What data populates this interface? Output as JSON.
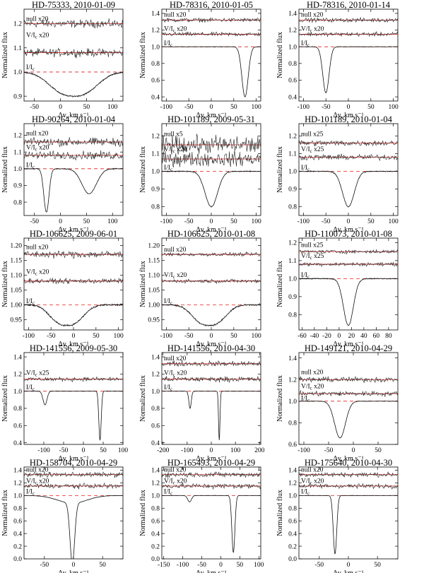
{
  "figure": {
    "xlabel": "Δv, km s⁻¹",
    "ylabel": "Normalized flux"
  },
  "chart_data": [
    {
      "type": "line",
      "title": "HD-75333, 2010-01-09",
      "xlim": [
        -70,
        120
      ],
      "ylim": [
        0.88,
        1.26
      ],
      "xticks": [
        -50,
        0,
        50,
        100
      ],
      "yticks": [
        0.9,
        1.0,
        1.1,
        1.2
      ],
      "labels": [
        {
          "text": "null x20",
          "y": 1.212
        },
        {
          "text": "V/I",
          "sub": "c",
          "suffix": " x20",
          "y": 1.145
        },
        {
          "text": "I/I",
          "sub": "c",
          "y": 1.012
        }
      ],
      "series": [
        {
          "kind": "null",
          "level": 1.2,
          "noise": 0.008
        },
        {
          "kind": "stokesV",
          "level": 1.08,
          "noise": 0.008
        },
        {
          "kind": "intensity",
          "components": [
            {
              "center": 25,
              "depth": 0.1,
              "width": 55,
              "shape": "box"
            }
          ]
        }
      ]
    },
    {
      "type": "line",
      "title": "HD-78316, 2010-01-05",
      "xlim": [
        -110,
        110
      ],
      "ylim": [
        0.35,
        1.45
      ],
      "xticks": [
        -100,
        -50,
        0,
        50,
        100
      ],
      "yticks": [
        0.4,
        0.6,
        0.8,
        1.0,
        1.2,
        1.4
      ],
      "labels": [
        {
          "text": "null x20",
          "y": 1.36
        },
        {
          "text": "V/I",
          "sub": "c",
          "suffix": " x20",
          "y": 1.19
        },
        {
          "text": "I/I",
          "sub": "c",
          "y": 1.02
        }
      ],
      "series": [
        {
          "kind": "null",
          "level": 1.32,
          "noise": 0.012
        },
        {
          "kind": "stokesV",
          "level": 1.15,
          "noise": 0.012
        },
        {
          "kind": "intensity",
          "components": [
            {
              "center": 75,
              "depth": 0.6,
              "width": 7,
              "shape": "gauss"
            }
          ]
        }
      ]
    },
    {
      "type": "line",
      "title": "HD-78316, 2010-01-14",
      "xlim": [
        -110,
        110
      ],
      "ylim": [
        0.35,
        1.45
      ],
      "xticks": [
        -100,
        -50,
        0,
        50,
        100
      ],
      "yticks": [
        0.4,
        0.6,
        0.8,
        1.0,
        1.2,
        1.4
      ],
      "labels": [
        {
          "text": "null x20",
          "y": 1.36
        },
        {
          "text": "V/I",
          "sub": "c",
          "suffix": " x20",
          "y": 1.19
        },
        {
          "text": "I/I",
          "sub": "c",
          "y": 1.02
        }
      ],
      "series": [
        {
          "kind": "null",
          "level": 1.32,
          "noise": 0.012
        },
        {
          "kind": "stokesV",
          "level": 1.15,
          "noise": 0.012
        },
        {
          "kind": "intensity",
          "components": [
            {
              "center": -50,
              "depth": 0.55,
              "width": 7,
              "shape": "gauss"
            }
          ]
        }
      ]
    },
    {
      "type": "line",
      "title": "HD-90264, 2010-01-04",
      "xlim": [
        -70,
        120
      ],
      "ylim": [
        0.72,
        1.27
      ],
      "xticks": [
        -50,
        0,
        50,
        100
      ],
      "yticks": [
        0.8,
        0.9,
        1.0,
        1.1,
        1.2
      ],
      "labels": [
        {
          "text": "null x20",
          "y": 1.2
        },
        {
          "text": "V/I",
          "sub": "c",
          "suffix": " x20",
          "y": 1.115
        },
        {
          "text": "I/I",
          "sub": "c",
          "y": 1.01
        }
      ],
      "series": [
        {
          "kind": "null",
          "level": 1.16,
          "noise": 0.012
        },
        {
          "kind": "stokesV",
          "level": 1.08,
          "noise": 0.012
        },
        {
          "kind": "intensity",
          "components": [
            {
              "center": -27,
              "depth": 0.26,
              "width": 5,
              "shape": "gauss"
            },
            {
              "center": 55,
              "depth": 0.15,
              "width": 14,
              "shape": "gauss"
            }
          ]
        }
      ]
    },
    {
      "type": "line",
      "title": "HD-101189, 2009-05-31",
      "xlim": [
        -110,
        110
      ],
      "ylim": [
        0.75,
        1.27
      ],
      "xticks": [
        -100,
        -50,
        0,
        50,
        100
      ],
      "yticks": [
        0.8,
        0.9,
        1.0,
        1.1,
        1.2
      ],
      "labels": [
        {
          "text": "null x5",
          "y": 1.2
        },
        {
          "text": "V/I",
          "sub": "c",
          "suffix": " x20",
          "y": 1.115
        },
        {
          "text": "I/I",
          "sub": "c",
          "y": 1.01
        }
      ],
      "series": [
        {
          "kind": "null",
          "level": 1.15,
          "noise": 0.025
        },
        {
          "kind": "stokesV",
          "level": 1.07,
          "noise": 0.02
        },
        {
          "kind": "intensity",
          "components": [
            {
              "center": 0,
              "depth": 0.2,
              "width": 14,
              "shape": "gauss"
            }
          ]
        }
      ]
    },
    {
      "type": "line",
      "title": "HD-101189, 2010-01-04",
      "xlim": [
        -110,
        110
      ],
      "ylim": [
        0.75,
        1.27
      ],
      "xticks": [
        -100,
        -50,
        0,
        50,
        100
      ],
      "yticks": [
        0.8,
        0.9,
        1.0,
        1.1,
        1.2
      ],
      "labels": [
        {
          "text": "null x25",
          "y": 1.2
        },
        {
          "text": "V/I",
          "sub": "c",
          "suffix": " x25",
          "y": 1.115
        },
        {
          "text": "I/I",
          "sub": "c",
          "y": 1.01
        }
      ],
      "series": [
        {
          "kind": "null",
          "level": 1.16,
          "noise": 0.008
        },
        {
          "kind": "stokesV",
          "level": 1.08,
          "noise": 0.008
        },
        {
          "kind": "intensity",
          "components": [
            {
              "center": 0,
              "depth": 0.2,
              "width": 13,
              "shape": "gauss"
            }
          ]
        }
      ]
    },
    {
      "type": "line",
      "title": "HD-106625, 2009-06-01",
      "xlim": [
        -110,
        110
      ],
      "ylim": [
        0.915,
        1.225
      ],
      "xticks": [
        -100,
        -50,
        0,
        50,
        100
      ],
      "yticks": [
        0.95,
        1.0,
        1.05,
        1.1,
        1.15,
        1.2
      ],
      "labels": [
        {
          "text": "null x20",
          "y": 1.188
        },
        {
          "text": "V/I",
          "sub": "c",
          "suffix": " x20",
          "y": 1.105
        },
        {
          "text": "I/I",
          "sub": "c",
          "y": 1.006
        }
      ],
      "series": [
        {
          "kind": "null",
          "level": 1.17,
          "noise": 0.006
        },
        {
          "kind": "stokesV",
          "level": 1.08,
          "noise": 0.004
        },
        {
          "kind": "intensity",
          "components": [
            {
              "center": -15,
              "depth": 0.07,
              "width": 45,
              "shape": "box"
            }
          ]
        }
      ]
    },
    {
      "type": "line",
      "title": "HD-106625, 2010-01-08",
      "xlim": [
        -110,
        110
      ],
      "ylim": [
        0.915,
        1.225
      ],
      "xticks": [
        -100,
        -50,
        0,
        50,
        100
      ],
      "yticks": [
        0.95,
        1.0,
        1.05,
        1.1,
        1.15,
        1.2
      ],
      "labels": [
        {
          "text": "null x20",
          "y": 1.18
        },
        {
          "text": "V/I",
          "sub": "c",
          "suffix": " x20",
          "y": 1.094
        },
        {
          "text": "I/I",
          "sub": "c",
          "y": 1.006
        }
      ],
      "series": [
        {
          "kind": "null",
          "level": 1.17,
          "noise": 0.003
        },
        {
          "kind": "stokesV",
          "level": 1.08,
          "noise": 0.003
        },
        {
          "kind": "intensity",
          "components": [
            {
              "center": -5,
              "depth": 0.07,
              "width": 45,
              "shape": "box"
            }
          ]
        }
      ]
    },
    {
      "type": "line",
      "title": "HD-110073, 2010-01-08",
      "xlim": [
        -65,
        95
      ],
      "ylim": [
        0.715,
        1.225
      ],
      "xticks": [
        -60,
        -40,
        -20,
        0,
        20,
        40,
        60,
        80
      ],
      "yticks": [
        0.8,
        0.9,
        1.0,
        1.1,
        1.2
      ],
      "labels": [
        {
          "text": "null x25",
          "y": 1.175
        },
        {
          "text": "V/I",
          "sub": "c",
          "suffix": " x25",
          "y": 1.115
        },
        {
          "text": "I/I",
          "sub": "c",
          "y": 1.01
        }
      ],
      "series": [
        {
          "kind": "null",
          "level": 1.15,
          "noise": 0.005
        },
        {
          "kind": "stokesV",
          "level": 1.08,
          "noise": 0.005
        },
        {
          "kind": "intensity",
          "components": [
            {
              "center": 15,
              "depth": 0.26,
              "width": 8,
              "shape": "gauss"
            }
          ]
        }
      ]
    },
    {
      "type": "line",
      "title": "HD-141556, 2009-05-30",
      "xlim": [
        -150,
        100
      ],
      "ylim": [
        0.38,
        1.45
      ],
      "xticks": [
        -100,
        -50,
        0,
        50,
        100
      ],
      "yticks": [
        0.4,
        0.6,
        0.8,
        1.0,
        1.2,
        1.4
      ],
      "labels": [
        {
          "text": "V/I",
          "sub": "c",
          "suffix": " x25",
          "y": 1.19
        },
        {
          "text": "I/I",
          "sub": "c",
          "y": 1.02
        }
      ],
      "series": [
        {
          "kind": "stokesV",
          "level": 1.14,
          "noise": 0.012
        },
        {
          "kind": "intensity",
          "components": [
            {
              "center": -97,
              "depth": 0.16,
              "width": 5,
              "shape": "gauss"
            },
            {
              "center": 42,
              "depth": 0.57,
              "width": 3,
              "shape": "gauss"
            }
          ]
        }
      ]
    },
    {
      "type": "line",
      "title": "HD-141556, 2010-04-30",
      "xlim": [
        -205,
        205
      ],
      "ylim": [
        0.38,
        1.45
      ],
      "xticks": [
        -200,
        -100,
        0,
        100,
        200
      ],
      "yticks": [
        0.4,
        0.6,
        0.8,
        1.0,
        1.2,
        1.4
      ],
      "labels": [
        {
          "text": "null x20",
          "y": 1.36
        },
        {
          "text": "V/I",
          "sub": "c",
          "suffix": " x20",
          "y": 1.19
        },
        {
          "text": "I/I",
          "sub": "c",
          "y": 1.02
        }
      ],
      "series": [
        {
          "kind": "null",
          "level": 1.32,
          "noise": 0.015
        },
        {
          "kind": "stokesV",
          "level": 1.14,
          "noise": 0.015
        },
        {
          "kind": "intensity",
          "components": [
            {
              "center": -88,
              "depth": 0.2,
              "width": 5,
              "shape": "gauss"
            },
            {
              "center": 33,
              "depth": 0.57,
              "width": 3,
              "shape": "gauss"
            }
          ]
        }
      ]
    },
    {
      "type": "line",
      "title": "HD-149121, 2010-04-29",
      "xlim": [
        -110,
        90
      ],
      "ylim": [
        0.6,
        1.45
      ],
      "xticks": [
        -100,
        -50,
        0,
        50
      ],
      "yticks": [
        0.6,
        0.8,
        1.0,
        1.2,
        1.4
      ],
      "labels": [
        {
          "text": "null x20",
          "y": 1.25
        },
        {
          "text": "V/I",
          "sub": "c",
          "suffix": " x20",
          "y": 1.12
        },
        {
          "text": "I/I",
          "sub": "c",
          "y": 1.01
        }
      ],
      "series": [
        {
          "kind": "null",
          "level": 1.2,
          "noise": 0.012
        },
        {
          "kind": "stokesV",
          "level": 1.07,
          "noise": 0.012
        },
        {
          "kind": "intensity",
          "components": [
            {
              "center": -27,
              "depth": 0.34,
              "width": 11,
              "shape": "gauss"
            }
          ]
        }
      ]
    },
    {
      "type": "line",
      "title": "HD-158704, 2010-04-29",
      "xlim": [
        -85,
        85
      ],
      "ylim": [
        0.0,
        1.45
      ],
      "xticks": [
        -50,
        0,
        50
      ],
      "yticks": [
        0.0,
        0.2,
        0.4,
        0.6,
        0.8,
        1.0,
        1.2,
        1.4
      ],
      "labels": [
        {
          "text": "null x20",
          "y": 1.38
        },
        {
          "text": "V/I",
          "sub": "c",
          "suffix": " x20",
          "y": 1.2
        },
        {
          "text": "I/I",
          "sub": "c",
          "y": 1.03
        }
      ],
      "series": [
        {
          "kind": "null",
          "level": 1.33,
          "noise": 0.018
        },
        {
          "kind": "stokesV",
          "level": 1.15,
          "noise": 0.018
        },
        {
          "kind": "intensity",
          "components": [
            {
              "center": -2,
              "depth": 0.95,
              "width": 4,
              "shape": "gauss"
            },
            {
              "center": -2,
              "depth": 0.12,
              "width": 25,
              "shape": "gauss"
            }
          ]
        }
      ]
    },
    {
      "type": "line",
      "title": "HD-165493, 2010-04-29",
      "xlim": [
        -155,
        105
      ],
      "ylim": [
        0.0,
        1.45
      ],
      "xticks": [
        -150,
        -100,
        -50,
        0,
        50,
        100
      ],
      "yticks": [
        0.0,
        0.2,
        0.4,
        0.6,
        0.8,
        1.0,
        1.2,
        1.4
      ],
      "labels": [
        {
          "text": "null x20",
          "y": 1.38
        },
        {
          "text": "V/I",
          "sub": "c",
          "suffix": " x20",
          "y": 1.2
        },
        {
          "text": "I/I",
          "sub": "c",
          "y": 1.03
        }
      ],
      "series": [
        {
          "kind": "null",
          "level": 1.33,
          "noise": 0.02
        },
        {
          "kind": "stokesV",
          "level": 1.15,
          "noise": 0.02
        },
        {
          "kind": "intensity",
          "components": [
            {
              "center": -82,
              "depth": 0.1,
              "width": 5,
              "shape": "gauss"
            },
            {
              "center": 33,
              "depth": 0.9,
              "width": 4,
              "shape": "gauss"
            }
          ]
        }
      ]
    },
    {
      "type": "line",
      "title": "HD-175640, 2010-04-30",
      "xlim": [
        -85,
        85
      ],
      "ylim": [
        0.0,
        1.45
      ],
      "xticks": [
        -50,
        0,
        50
      ],
      "yticks": [
        0.0,
        0.2,
        0.4,
        0.6,
        0.8,
        1.0,
        1.2,
        1.4
      ],
      "labels": [
        {
          "text": "null x20",
          "y": 1.38
        },
        {
          "text": "V/I",
          "sub": "c",
          "suffix": " x20",
          "y": 1.2
        },
        {
          "text": "I/I",
          "sub": "c",
          "y": 1.03
        }
      ],
      "series": [
        {
          "kind": "null",
          "level": 1.33,
          "noise": 0.018
        },
        {
          "kind": "stokesV",
          "level": 1.15,
          "noise": 0.018
        },
        {
          "kind": "intensity",
          "components": [
            {
              "center": -23,
              "depth": 0.92,
              "width": 3,
              "shape": "gauss"
            }
          ]
        }
      ]
    }
  ]
}
